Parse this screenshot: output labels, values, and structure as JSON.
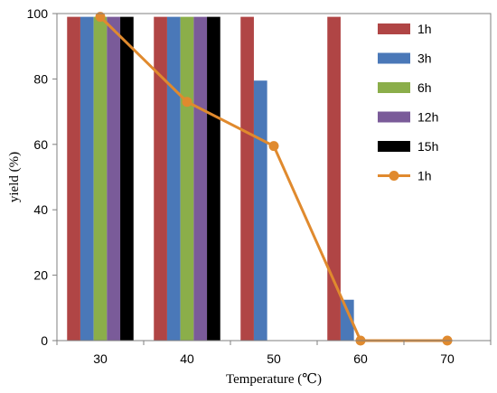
{
  "chart_data": {
    "type": "bar",
    "title": "",
    "xlabel": "Temperature (℃)",
    "ylabel": "yield (%)",
    "categories": [
      "30",
      "40",
      "50",
      "60",
      "70"
    ],
    "ylim": [
      0,
      100
    ],
    "yticks": [
      "0",
      "20",
      "40",
      "60",
      "80",
      "100"
    ],
    "grid": false,
    "legend_position": "right",
    "series": [
      {
        "name": "1h",
        "kind": "bar",
        "color": "#B04545",
        "values": [
          99,
          99,
          99,
          99,
          0
        ]
      },
      {
        "name": "3h",
        "kind": "bar",
        "color": "#4A78B8",
        "values": [
          99,
          99,
          79.5,
          12.5,
          0
        ]
      },
      {
        "name": "6h",
        "kind": "bar",
        "color": "#8BAE4A",
        "values": [
          99,
          99,
          0,
          0,
          0
        ]
      },
      {
        "name": "12h",
        "kind": "bar",
        "color": "#7A5B99",
        "values": [
          99,
          99,
          0,
          0,
          0
        ]
      },
      {
        "name": "15h",
        "kind": "bar",
        "color": "#000000",
        "values": [
          99,
          99,
          0,
          0,
          0
        ]
      },
      {
        "name": "1h",
        "kind": "line",
        "color": "#E08A2E",
        "values": [
          99,
          73,
          59.5,
          0,
          0
        ]
      }
    ]
  }
}
